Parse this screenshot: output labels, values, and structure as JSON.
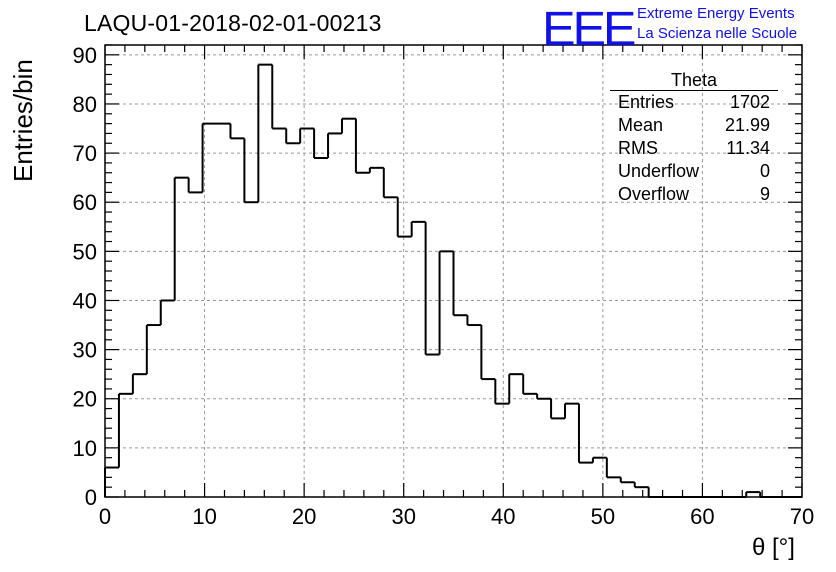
{
  "chart_data": {
    "type": "histogram",
    "title": "LAQU-01-2018-02-01-00213",
    "xlabel": "θ [°]",
    "ylabel": "Entries/bin",
    "xlim": [
      0,
      70
    ],
    "ylim": [
      0,
      92
    ],
    "x_ticks": [
      0,
      10,
      20,
      30,
      40,
      50,
      60,
      70
    ],
    "y_ticks": [
      0,
      10,
      20,
      30,
      40,
      50,
      60,
      70,
      80,
      90
    ],
    "grid": true,
    "bin_width": 1.4,
    "values": [
      6,
      21,
      25,
      35,
      40,
      65,
      62,
      76,
      76,
      73,
      60,
      88,
      75,
      72,
      75,
      69,
      74,
      77,
      66,
      67,
      61,
      53,
      56,
      29,
      50,
      37,
      35,
      24,
      19,
      25,
      21,
      20,
      16,
      19,
      7,
      8,
      4,
      3,
      2,
      0,
      0,
      0,
      0,
      0,
      0,
      0,
      1,
      0,
      0,
      0
    ],
    "stats_box": {
      "title": "Theta",
      "rows": [
        {
          "label": "Entries",
          "value": "1702"
        },
        {
          "label": "Mean",
          "value": "21.99"
        },
        {
          "label": "RMS",
          "value": "11.34"
        },
        {
          "label": "Underflow",
          "value": "0"
        },
        {
          "label": "Overflow",
          "value": "9"
        }
      ]
    }
  },
  "logo": {
    "mark": "EEE",
    "line1": "Extreme Energy Events",
    "line2": "La Scienza nelle Scuole",
    "color": "#1010e8"
  }
}
